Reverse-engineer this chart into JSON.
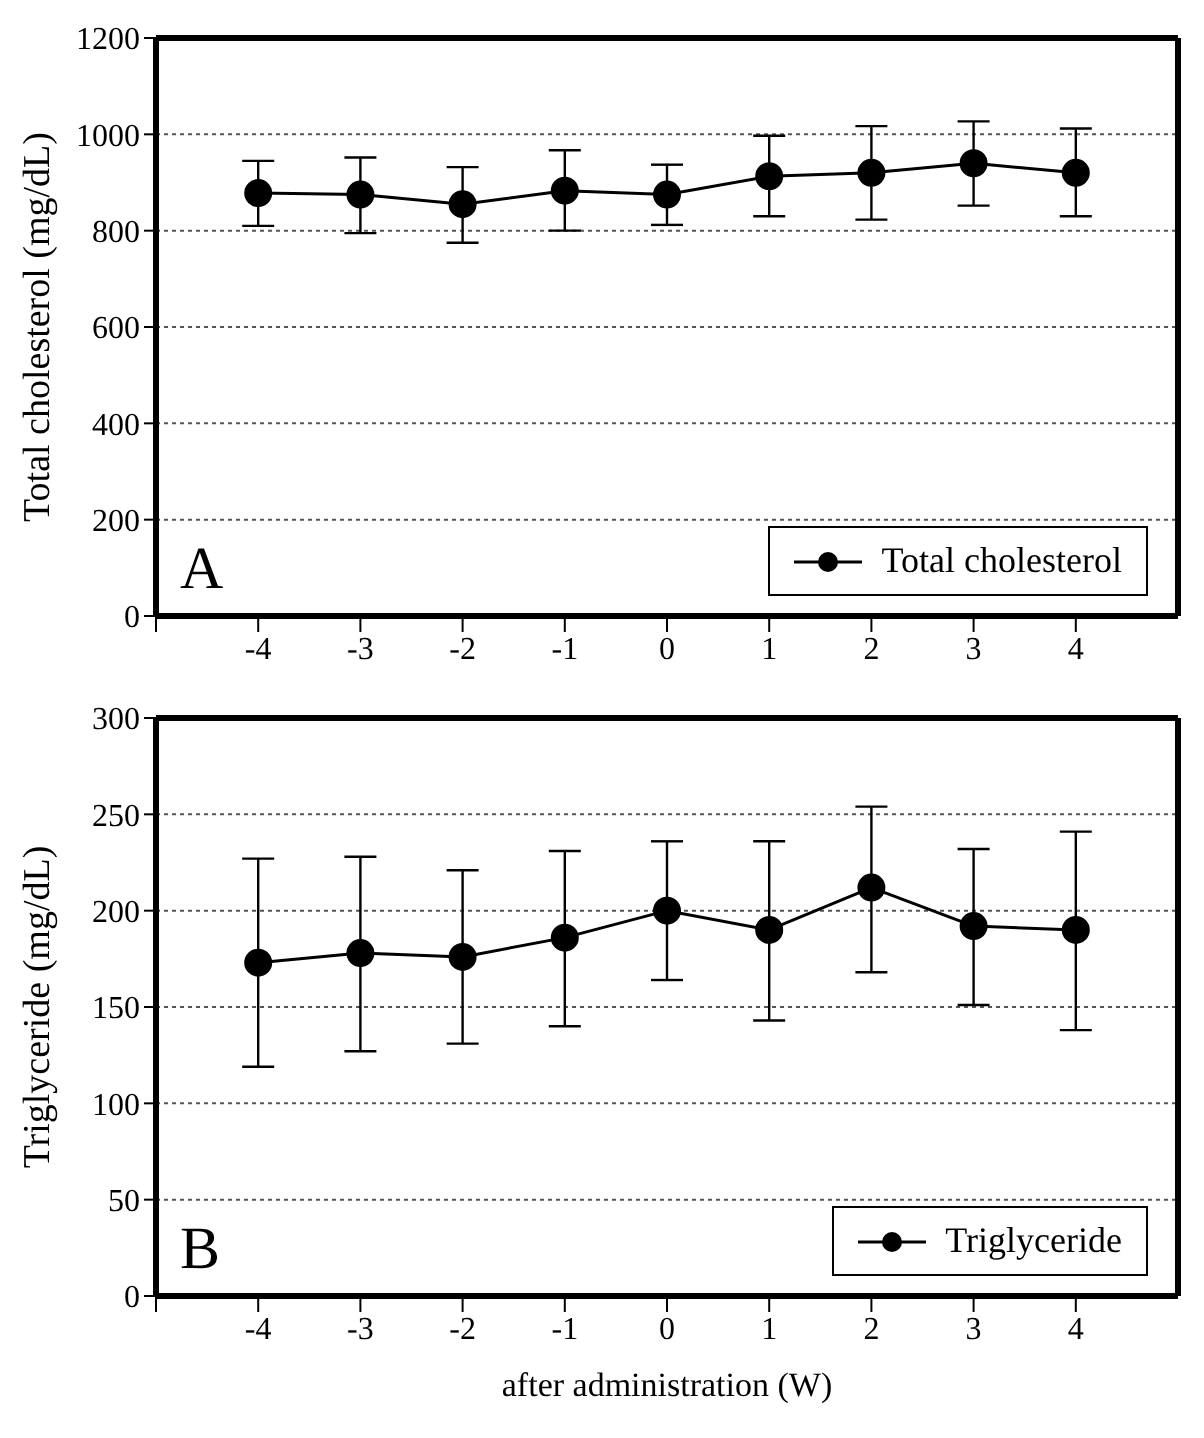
{
  "chart_data": [
    {
      "type": "line",
      "ylabel": "Total cholesterol (mg/dL)",
      "x": [
        -4,
        -3,
        -2,
        -1,
        0,
        1,
        2,
        3,
        4
      ],
      "xlim": [
        -5,
        5
      ],
      "xticks": [
        {
          "value": -5,
          "label": null
        },
        -4,
        -3,
        -2,
        -1,
        0,
        1,
        2,
        3,
        4
      ],
      "ylim": [
        0,
        1200
      ],
      "yticks": [
        0,
        200,
        400,
        600,
        800,
        1000,
        1200
      ],
      "grid": "y",
      "marker": "circle",
      "line_style": "solid",
      "legend": "bottom right",
      "annotations": [
        "A"
      ],
      "series": [
        {
          "name": "Total cholesterol",
          "color": "#000000",
          "values": [
            878,
            875,
            855,
            883,
            875,
            913,
            920,
            940,
            920
          ],
          "errors": [
            [
              810,
              945
            ],
            [
              795,
              952
            ],
            [
              775,
              932
            ],
            [
              800,
              967
            ],
            [
              812,
              937
            ],
            [
              830,
              997
            ],
            [
              823,
              1017
            ],
            [
              852,
              1027
            ],
            [
              830,
              1012
            ]
          ]
        }
      ]
    },
    {
      "type": "line",
      "ylabel": "Triglyceride (mg/dL)",
      "xlabel": "after administration (W)",
      "x": [
        -4,
        -3,
        -2,
        -1,
        0,
        1,
        2,
        3,
        4
      ],
      "xlim": [
        -5,
        5
      ],
      "xticks": [
        {
          "value": -5,
          "label": null
        },
        -4,
        -3,
        -2,
        -1,
        0,
        1,
        2,
        3,
        4
      ],
      "ylim": [
        0,
        300
      ],
      "yticks": [
        0,
        50,
        100,
        150,
        200,
        250,
        300
      ],
      "grid": "y",
      "marker": "circle",
      "line_style": "solid",
      "legend": "bottom right",
      "annotations": [
        "B"
      ],
      "series": [
        {
          "name": "Triglyceride",
          "color": "#000000",
          "values": [
            173,
            178,
            176,
            186,
            200,
            190,
            212,
            192,
            190
          ],
          "errors": [
            [
              119,
              227
            ],
            [
              127,
              228
            ],
            [
              131,
              221
            ],
            [
              140,
              231
            ],
            [
              164,
              236
            ],
            [
              143,
              236
            ],
            [
              168,
              254
            ],
            [
              151,
              232
            ],
            [
              138,
              241
            ]
          ]
        }
      ]
    }
  ]
}
